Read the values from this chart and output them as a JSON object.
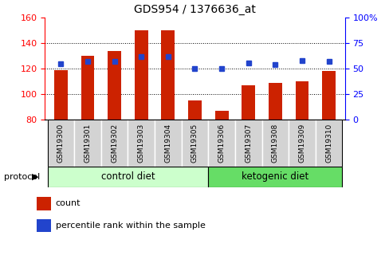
{
  "title": "GDS954 / 1376636_at",
  "samples": [
    "GSM19300",
    "GSM19301",
    "GSM19302",
    "GSM19303",
    "GSM19304",
    "GSM19305",
    "GSM19306",
    "GSM19307",
    "GSM19308",
    "GSM19309",
    "GSM19310"
  ],
  "counts": [
    119,
    130,
    134,
    150,
    150,
    95,
    87,
    107,
    109,
    110,
    118
  ],
  "percentile_ranks": [
    55,
    57,
    57,
    62,
    62,
    50,
    50,
    56,
    54,
    58,
    57
  ],
  "ylim_left": [
    80,
    160
  ],
  "ylim_right": [
    0,
    100
  ],
  "yticks_left": [
    80,
    100,
    120,
    140,
    160
  ],
  "yticks_right": [
    0,
    25,
    50,
    75,
    100
  ],
  "yticklabels_right": [
    "0",
    "25",
    "50",
    "75",
    "100%"
  ],
  "bar_color": "#cc2200",
  "dot_color": "#2244cc",
  "bar_width": 0.5,
  "protocol_groups": [
    {
      "label": "control diet",
      "n": 6,
      "color": "#ccffcc"
    },
    {
      "label": "ketogenic diet",
      "n": 5,
      "color": "#66dd66"
    }
  ],
  "legend_items": [
    {
      "label": "count",
      "color": "#cc2200"
    },
    {
      "label": "percentile rank within the sample",
      "color": "#2244cc"
    }
  ],
  "cell_bg": "#d3d3d3",
  "cell_border": "#888888"
}
